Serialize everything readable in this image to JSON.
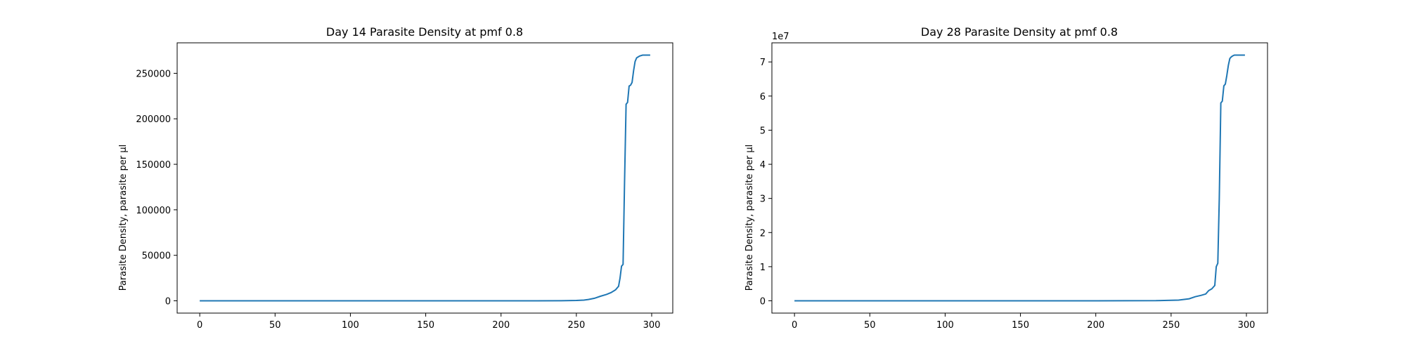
{
  "colors": {
    "line": "#1f77b4",
    "frame": "#000000",
    "background": "#ffffff"
  },
  "chart_data": [
    {
      "type": "line",
      "title": "Day 14 Parasite Density at pmf 0.8",
      "xlabel": "",
      "ylabel": "Parasite Density, parasite per µl",
      "xlim": [
        -15,
        314
      ],
      "ylim": [
        -13500,
        283500
      ],
      "xticks": [
        0,
        50,
        100,
        150,
        200,
        250,
        300
      ],
      "yticks": [
        0,
        50000,
        100000,
        150000,
        200000,
        250000
      ],
      "ytick_labels": [
        "0",
        "50000",
        "100000",
        "150000",
        "200000",
        "250000"
      ],
      "offset_text": "",
      "grid": false,
      "series": [
        {
          "x": [
            0,
            100,
            200,
            240,
            250,
            255,
            258,
            262,
            266,
            270,
            273,
            276,
            278,
            279,
            280,
            281,
            282,
            283,
            284,
            285,
            286,
            287,
            288,
            289,
            290,
            291,
            292,
            294,
            296,
            299
          ],
          "y": [
            0,
            0,
            0,
            100,
            400,
            800,
            1500,
            2800,
            5000,
            7000,
            9000,
            12000,
            16000,
            25000,
            38000,
            40000,
            130000,
            216000,
            218000,
            236000,
            237000,
            240000,
            253000,
            263000,
            267000,
            268000,
            269000,
            270000,
            270000,
            270000
          ]
        }
      ]
    },
    {
      "type": "line",
      "title": "Day 28 Parasite Density at pmf 0.8",
      "xlabel": "",
      "ylabel": "Parasite Density, parasite per µl",
      "xlim": [
        -15,
        314
      ],
      "ylim": [
        -3600000,
        75600000
      ],
      "xticks": [
        0,
        50,
        100,
        150,
        200,
        250,
        300
      ],
      "yticks": [
        0,
        10000000,
        20000000,
        30000000,
        40000000,
        50000000,
        60000000,
        70000000
      ],
      "ytick_labels": [
        "0",
        "1",
        "2",
        "3",
        "4",
        "5",
        "6",
        "7"
      ],
      "offset_text": "1e7",
      "grid": false,
      "series": [
        {
          "x": [
            0,
            100,
            200,
            240,
            255,
            262,
            266,
            270,
            273,
            275,
            277,
            279,
            280,
            281,
            282,
            283,
            284,
            285,
            286,
            287,
            288,
            289,
            290,
            291,
            292,
            294,
            296,
            299
          ],
          "y": [
            0,
            0,
            0,
            50000,
            200000,
            600000,
            1200000,
            1600000,
            2000000,
            3000000,
            3500000,
            4500000,
            10000000,
            11000000,
            30000000,
            58000000,
            58500000,
            63000000,
            63500000,
            66000000,
            69000000,
            71000000,
            71500000,
            71800000,
            72000000,
            72000000,
            72000000,
            72000000
          ]
        }
      ]
    }
  ]
}
